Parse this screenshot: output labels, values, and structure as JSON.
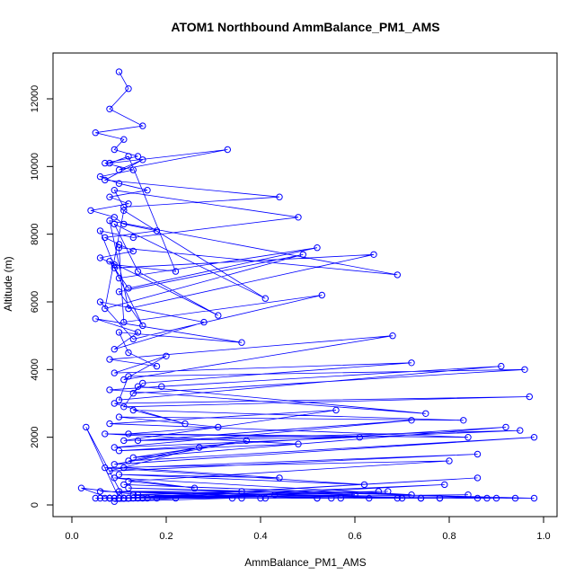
{
  "chart_data": {
    "type": "line",
    "title": "ATOM1 Northbound AmmBalance_PM1_AMS",
    "xlabel": "AmmBalance_PM1_AMS",
    "ylabel": "Altitude (m)",
    "xlim": [
      0,
      1
    ],
    "ylim": [
      0,
      12800
    ],
    "x_ticks": [
      "0.0",
      "0.2",
      "0.4",
      "0.6",
      "0.8",
      "1.0"
    ],
    "y_ticks": [
      "0",
      "2000",
      "4000",
      "6000",
      "8000",
      "10000",
      "12000"
    ],
    "grid": false,
    "legend": "none",
    "colors": {
      "series": "#0000ff"
    },
    "markers": "open-circle",
    "series": [
      {
        "x": [
          0.1,
          0.12,
          0.08,
          0.15,
          0.05,
          0.11,
          0.09,
          0.14,
          0.07,
          0.13,
          0.06,
          0.1,
          0.16,
          0.08,
          0.12,
          0.04,
          0.09,
          0.11,
          0.18,
          0.07,
          0.1,
          0.13,
          0.06,
          0.09,
          0.22,
          0.12,
          0.08,
          0.33,
          0.1,
          0.15,
          0.07,
          0.44,
          0.11,
          0.09,
          0.48,
          0.13,
          0.06,
          0.1,
          0.52,
          0.12,
          0.08,
          0.31,
          0.14,
          0.09,
          0.41,
          0.11,
          0.07,
          0.49,
          0.1,
          0.15,
          0.09,
          0.64,
          0.12,
          0.08,
          0.69,
          0.1,
          0.11,
          0.53,
          0.13,
          0.06,
          0.28,
          0.09,
          0.14,
          0.05,
          0.36,
          0.1,
          0.12,
          0.18,
          0.08,
          0.68,
          0.11,
          0.2,
          0.09,
          0.72,
          0.15,
          0.13,
          0.96,
          0.12,
          0.1,
          0.91,
          0.19,
          0.08,
          0.75,
          0.14,
          0.11,
          0.97,
          0.09,
          0.24,
          0.13,
          0.83,
          0.1,
          0.31,
          0.12,
          0.84,
          0.08,
          0.56,
          0.11,
          0.95,
          0.09,
          0.72,
          0.14,
          0.61,
          0.07,
          0.48,
          0.1,
          0.92,
          0.13,
          0.37,
          0.09,
          0.98,
          0.12,
          0.27,
          0.08,
          0.86,
          0.11,
          0.44,
          0.1,
          0.62,
          0.07,
          0.8,
          0.12,
          0.26,
          0.09,
          0.72,
          0.11,
          0.9,
          0.1,
          0.36,
          0.13,
          0.55,
          0.06,
          0.78,
          0.14,
          0.02,
          0.08,
          0.65,
          0.1,
          0.86,
          0.12,
          0.43,
          0.05,
          0.7,
          0.11,
          0.79,
          0.09,
          0.34,
          0.13,
          0.67,
          0.1,
          0.6,
          0.12,
          0.98,
          0.08,
          0.52,
          0.16,
          0.84,
          0.11,
          0.94,
          0.07,
          0.4,
          0.1,
          0.74,
          0.13,
          0.18,
          0.12,
          0.88,
          0.09,
          0.57,
          0.15,
          0.11,
          0.08,
          0.74,
          0.1,
          0.41,
          0.11,
          0.69,
          0.06,
          0.63,
          0.12,
          0.78,
          0.09,
          0.36,
          0.14,
          0.86,
          0.1,
          0.52,
          0.08,
          0.22,
          0.11,
          0.03,
          0.1
        ],
        "y": [
          12800,
          12300,
          11700,
          11200,
          11000,
          10800,
          10500,
          10300,
          10100,
          9900,
          9700,
          9500,
          9300,
          9100,
          8900,
          8700,
          8500,
          8300,
          8100,
          7900,
          7700,
          7500,
          7300,
          7100,
          6900,
          10300,
          10100,
          10500,
          9900,
          10200,
          9600,
          9100,
          8800,
          9300,
          8500,
          7900,
          8100,
          6700,
          7600,
          6400,
          7200,
          5600,
          6900,
          8300,
          6100,
          8700,
          5800,
          7400,
          6300,
          5300,
          7000,
          7400,
          5800,
          8400,
          6800,
          7600,
          5400,
          6200,
          4900,
          6000,
          5400,
          4600,
          5100,
          5500,
          4800,
          5100,
          4500,
          4100,
          4300,
          5000,
          3700,
          4400,
          3900,
          4200,
          3600,
          3300,
          4000,
          3800,
          3100,
          4100,
          3500,
          3400,
          2700,
          3500,
          2900,
          3200,
          3000,
          2400,
          2800,
          2500,
          2600,
          2300,
          2100,
          2000,
          2400,
          2800,
          1900,
          2200,
          1700,
          2500,
          1900,
          2000,
          2100,
          1800,
          1600,
          2300,
          1400,
          1900,
          1200,
          2000,
          1300,
          1700,
          1000,
          1500,
          1100,
          800,
          900,
          600,
          1100,
          1300,
          700,
          500,
          800,
          300,
          600,
          200,
          400,
          400,
          300,
          200,
          400,
          200,
          300,
          500,
          200,
          400,
          200,
          800,
          200,
          300,
          200,
          200,
          200,
          600,
          100,
          200,
          200,
          400,
          200,
          300,
          500,
          200,
          200,
          200,
          200,
          300,
          200,
          200,
          200,
          200,
          200,
          200,
          300,
          200,
          200,
          200,
          200,
          200,
          200,
          200,
          200,
          200,
          200,
          200,
          200,
          200,
          200,
          200,
          200,
          200,
          200,
          200,
          200,
          200,
          200,
          200,
          200,
          200,
          200,
          2300,
          200
        ]
      }
    ]
  }
}
